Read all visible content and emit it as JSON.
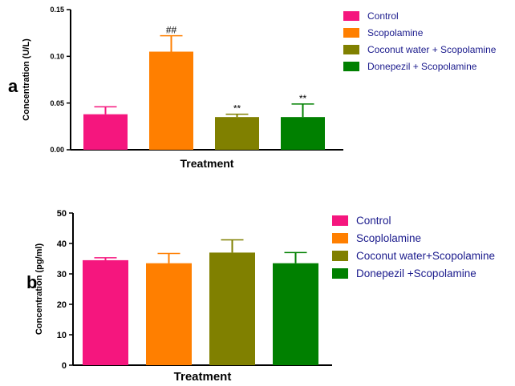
{
  "colors": {
    "control": "#f5167e",
    "scopolamine": "#ff7f00",
    "coconut": "#808000",
    "donepezil": "#008000",
    "axis": "#000000",
    "legend_text": "#1a1a8c"
  },
  "chart_data": [
    {
      "type": "bar",
      "panel_label": "a",
      "ylabel": "Concentration (U/L)",
      "xlabel": "Treatment",
      "ylim": [
        0,
        0.15
      ],
      "yticks": [
        "0.00",
        "0.05",
        "0.10",
        "0.15"
      ],
      "ytick_values": [
        0,
        0.05,
        0.1,
        0.15
      ],
      "grid": false,
      "legend_position": "right",
      "series": [
        {
          "name": "Control",
          "value": 0.038,
          "error": 0.008,
          "annotation": "",
          "color": "#f5167e"
        },
        {
          "name": "Scopolamine",
          "value": 0.105,
          "error": 0.017,
          "annotation": "##",
          "color": "#ff7f00"
        },
        {
          "name": "Coconut water + Scopolamine",
          "value": 0.035,
          "error": 0.003,
          "annotation": "**",
          "color": "#808000"
        },
        {
          "name": "Donepezil + Scopolamine",
          "value": 0.035,
          "error": 0.014,
          "annotation": "**",
          "color": "#008000"
        }
      ]
    },
    {
      "type": "bar",
      "panel_label": "b",
      "ylabel": "Concentration (pg/ml)",
      "xlabel": "Treatment",
      "ylim": [
        0,
        50
      ],
      "yticks": [
        "0",
        "10",
        "20",
        "30",
        "40",
        "50"
      ],
      "ytick_values": [
        0,
        10,
        20,
        30,
        40,
        50
      ],
      "grid": false,
      "legend_position": "right",
      "series": [
        {
          "name": "Control",
          "value": 34.5,
          "error": 0.8,
          "annotation": "",
          "color": "#f5167e"
        },
        {
          "name": "Scoplolamine",
          "value": 33.5,
          "error": 3.2,
          "annotation": "",
          "color": "#ff7f00"
        },
        {
          "name": "Coconut water+Scopolamine",
          "value": 37.0,
          "error": 4.2,
          "annotation": "",
          "color": "#808000"
        },
        {
          "name": "Donepezil +Scopolamine",
          "value": 33.5,
          "error": 3.5,
          "annotation": "",
          "color": "#008000"
        }
      ]
    }
  ]
}
